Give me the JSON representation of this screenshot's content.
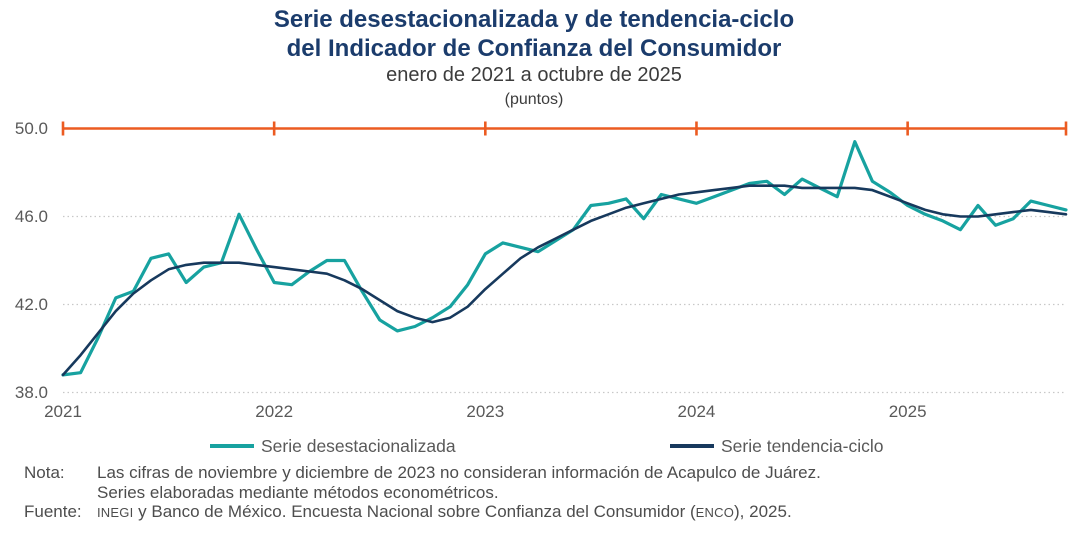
{
  "header": {
    "title_line1": "Serie desestacionalizada y de tendencia-ciclo",
    "title_line2": "del Indicador de Confianza del Consumidor",
    "subtitle": "enero de 2021 a octubre de 2025",
    "units": "(puntos)"
  },
  "chart_data": {
    "type": "line",
    "x_unit": "month",
    "x_start": "2021-01",
    "x_end": "2025-10",
    "x_tick_labels": [
      "2021",
      "2022",
      "2023",
      "2024",
      "2025"
    ],
    "x_tick_month_indices": [
      0,
      12,
      24,
      36,
      48
    ],
    "y_ticks": [
      38.0,
      42.0,
      46.0,
      50.0
    ],
    "y_tick_labels": [
      "38.0",
      "42.0",
      "46.0",
      "50.0"
    ],
    "ylim": [
      38.0,
      50.0
    ],
    "grid": "horizontal-dotted",
    "legend_position": "bottom",
    "reference_line": {
      "value": 50.0,
      "color": "#ec5b21"
    },
    "series": [
      {
        "name": "Serie desestacionalizada",
        "color": "#17a2a0",
        "values": [
          38.8,
          38.9,
          40.5,
          42.3,
          42.6,
          44.1,
          44.3,
          43.0,
          43.7,
          43.9,
          46.1,
          44.5,
          43.0,
          42.9,
          43.5,
          44.0,
          44.0,
          42.6,
          41.3,
          40.8,
          41.0,
          41.4,
          41.9,
          42.9,
          44.3,
          44.8,
          44.6,
          44.4,
          44.9,
          45.4,
          46.5,
          46.6,
          46.8,
          45.9,
          47.0,
          46.8,
          46.6,
          46.9,
          47.2,
          47.5,
          47.6,
          47.0,
          47.7,
          47.3,
          46.9,
          49.4,
          47.6,
          47.1,
          46.5,
          46.1,
          45.8,
          45.4,
          46.5,
          45.6,
          45.9,
          46.7,
          46.5,
          46.3
        ]
      },
      {
        "name": "Serie tendencia-ciclo",
        "color": "#17395d",
        "values": [
          38.8,
          39.7,
          40.7,
          41.7,
          42.5,
          43.1,
          43.6,
          43.8,
          43.9,
          43.9,
          43.9,
          43.8,
          43.7,
          43.6,
          43.5,
          43.4,
          43.1,
          42.7,
          42.2,
          41.7,
          41.4,
          41.2,
          41.4,
          41.9,
          42.7,
          43.4,
          44.1,
          44.6,
          45.0,
          45.4,
          45.8,
          46.1,
          46.4,
          46.6,
          46.8,
          47.0,
          47.1,
          47.2,
          47.3,
          47.4,
          47.4,
          47.4,
          47.3,
          47.3,
          47.3,
          47.3,
          47.2,
          46.9,
          46.6,
          46.3,
          46.1,
          46.0,
          46.0,
          46.1,
          46.2,
          46.3,
          46.2,
          46.1
        ]
      }
    ]
  },
  "legend": {
    "items": [
      {
        "label": "Serie desestacionalizada",
        "color": "#17a2a0"
      },
      {
        "label": "Serie tendencia-ciclo",
        "color": "#17395d"
      }
    ]
  },
  "notes": {
    "nota_label": "Nota:",
    "nota_line1": "Las cifras de noviembre y diciembre de 2023 no consideran información de Acapulco de Juárez.",
    "nota_line2": "Series elaboradas mediante métodos econométricos.",
    "fuente_label": "Fuente:",
    "fuente_parts": [
      "INEGI",
      " y Banco de México. Encuesta Nacional sobre Confianza del Consumidor (",
      "ENCO",
      "), 2025."
    ]
  },
  "colors": {
    "title": "#1b3c6c",
    "axis_text": "#595959",
    "grid": "#c8c8c8",
    "reference": "#ec5b21"
  }
}
